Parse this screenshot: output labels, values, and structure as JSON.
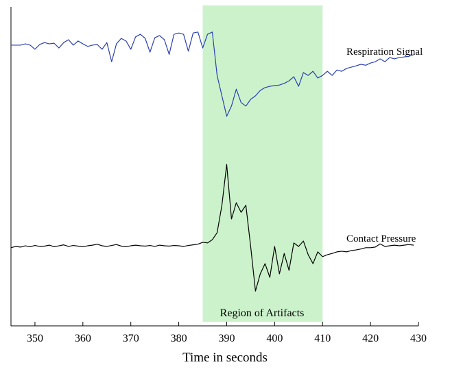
{
  "chart_data": {
    "type": "line",
    "x_label": "Time in seconds",
    "xlim": [
      345,
      430
    ],
    "ylim": [
      0,
      100
    ],
    "xticks": [
      350,
      360,
      370,
      380,
      390,
      400,
      410,
      420,
      430
    ],
    "shaded_region": {
      "label": "Region of Artifacts",
      "from": 385,
      "to": 410,
      "color": "#ccf2cc"
    },
    "x": [
      345,
      346,
      347,
      348,
      349,
      350,
      351,
      352,
      353,
      354,
      355,
      356,
      357,
      358,
      359,
      360,
      361,
      362,
      363,
      364,
      365,
      366,
      367,
      368,
      369,
      370,
      371,
      372,
      373,
      374,
      375,
      376,
      377,
      378,
      379,
      380,
      381,
      382,
      383,
      384,
      385,
      386,
      387,
      388,
      389,
      390,
      391,
      392,
      393,
      394,
      395,
      396,
      397,
      398,
      399,
      400,
      401,
      402,
      403,
      404,
      405,
      406,
      407,
      408,
      409,
      410,
      411,
      412,
      413,
      414,
      415,
      416,
      417,
      418,
      419,
      420,
      421,
      422,
      423,
      424,
      425,
      426,
      427,
      428,
      429
    ],
    "series": [
      {
        "name": "Respiration Signal",
        "color": "#2a3fb0",
        "values": [
          88,
          88,
          88,
          88.4,
          88,
          86.7,
          88.2,
          88.8,
          88.4,
          88.6,
          87.1,
          88.8,
          89.7,
          88,
          89.3,
          88.4,
          87.6,
          88,
          88.2,
          86.7,
          88.8,
          82.8,
          88.4,
          90.1,
          89.3,
          86.7,
          90.6,
          91.4,
          90.1,
          85.8,
          90.3,
          91,
          89.7,
          85.1,
          91.4,
          91.8,
          91.4,
          86.1,
          91.8,
          92.1,
          87.1,
          91.4,
          92.1,
          78.5,
          72.1,
          65.7,
          68.9,
          74.2,
          70,
          68.9,
          71,
          72.1,
          73.8,
          74.7,
          75.1,
          75.3,
          75.5,
          76,
          76.8,
          78.1,
          75.1,
          79.4,
          78.5,
          79.8,
          77.7,
          78.5,
          79.8,
          78.5,
          80.2,
          79.8,
          80.7,
          81.1,
          81.5,
          82,
          81.7,
          82.4,
          82.8,
          83.7,
          82.8,
          84.1,
          83.7,
          84.1,
          84.3,
          84.5,
          85
        ]
      },
      {
        "name": "Contact Pressure",
        "color": "#000000",
        "values": [
          24.5,
          24.9,
          24.7,
          25.1,
          24.8,
          25.2,
          24.9,
          25,
          25.3,
          24.8,
          25.1,
          25.4,
          24.9,
          25.2,
          25,
          24.8,
          25.1,
          25.3,
          25.6,
          25.1,
          24.9,
          25.2,
          25.5,
          25,
          24.8,
          25.1,
          25.3,
          25.1,
          25,
          25.2,
          24.9,
          25.3,
          25.1,
          25,
          25.2,
          25.1,
          24.9,
          25.2,
          25.4,
          25.6,
          26.2,
          26,
          27,
          29.2,
          37.8,
          50.6,
          33.5,
          38.6,
          35.6,
          37.8,
          24.9,
          10.9,
          16.3,
          19.5,
          15.2,
          24.9,
          16.3,
          22.7,
          17.4,
          26,
          24.9,
          26.6,
          22.3,
          19.5,
          23.2,
          21.7,
          22.3,
          22.7,
          23.2,
          23.4,
          23.2,
          23.6,
          23.8,
          24.1,
          24.5,
          24.5,
          24.7,
          25.7,
          24.9,
          25.1,
          25.3,
          25.1,
          25.3,
          25.5,
          25.3
        ]
      }
    ]
  }
}
